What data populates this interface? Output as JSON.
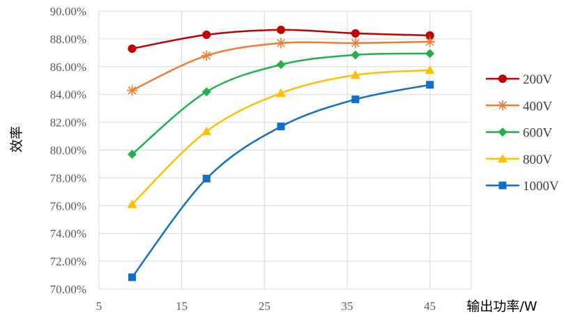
{
  "chart_data": {
    "type": "line",
    "title": "",
    "xlabel": "输出功率/W",
    "ylabel": "效率",
    "xlim": [
      5,
      50
    ],
    "ylim": [
      70,
      90
    ],
    "x_ticks": [
      "5",
      "15",
      "25",
      "35",
      "45"
    ],
    "y_ticks": [
      "70.00%",
      "72.00%",
      "74.00%",
      "76.00%",
      "78.00%",
      "80.00%",
      "82.00%",
      "84.00%",
      "86.00%",
      "88.00%",
      "90.00%"
    ],
    "grid": true,
    "legend_position": "right",
    "x": [
      9,
      18,
      27,
      36,
      45
    ],
    "series": [
      {
        "name": "200V",
        "values": [
          87.3,
          88.3,
          88.65,
          88.4,
          88.25
        ],
        "color": "#c00000",
        "marker": "circle"
      },
      {
        "name": "400V",
        "values": [
          84.3,
          86.8,
          87.7,
          87.7,
          87.8
        ],
        "color": "#ed7d31",
        "marker": "star"
      },
      {
        "name": "600V",
        "values": [
          79.7,
          84.2,
          86.15,
          86.85,
          86.95
        ],
        "color": "#1fb14c",
        "marker": "diamond"
      },
      {
        "name": "800V",
        "values": [
          76.1,
          81.35,
          84.1,
          85.4,
          85.75
        ],
        "color": "#ffc000",
        "marker": "triangle"
      },
      {
        "name": "1000V",
        "values": [
          70.85,
          77.95,
          81.7,
          83.65,
          84.7
        ],
        "color": "#0f6fc6",
        "marker": "square"
      }
    ]
  }
}
